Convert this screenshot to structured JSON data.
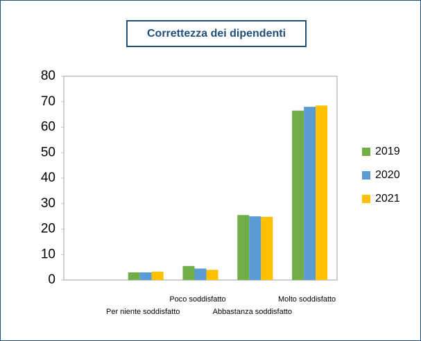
{
  "chart_data": {
    "type": "bar",
    "title": "Correttezza dei dipendenti",
    "categories": [
      null,
      "Per niente soddisfatto",
      "Poco soddisfatto",
      "Abbastanza soddisfatto",
      "Molto soddisfatto"
    ],
    "series": [
      {
        "name": "2019",
        "color": "#70ad47",
        "values": [
          null,
          3,
          5.5,
          25.5,
          66.5
        ]
      },
      {
        "name": "2020",
        "color": "#5b9bd5",
        "values": [
          null,
          3,
          4.5,
          25,
          68
        ]
      },
      {
        "name": "2021",
        "color": "#ffc000",
        "values": [
          null,
          3.3,
          4,
          24.8,
          68.5
        ]
      }
    ],
    "ylim": [
      0,
      80
    ],
    "yticks": [
      0,
      10,
      20,
      30,
      40,
      50,
      60,
      70,
      80
    ],
    "grid": false,
    "legend": "right"
  }
}
